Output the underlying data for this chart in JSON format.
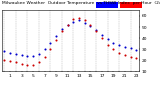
{
  "background_color": "#ffffff",
  "grid_color": "#aaaaaa",
  "hours": [
    0,
    1,
    2,
    3,
    4,
    5,
    6,
    7,
    8,
    9,
    10,
    11,
    12,
    13,
    14,
    15,
    16,
    17,
    18,
    19,
    20,
    21,
    22,
    23
  ],
  "temp_blue": [
    28,
    27,
    26,
    25,
    24,
    24,
    26,
    30,
    36,
    42,
    48,
    52,
    55,
    56,
    54,
    51,
    47,
    43,
    39,
    36,
    34,
    32,
    31,
    29
  ],
  "thsw_red": [
    20,
    19,
    18,
    17,
    16,
    16,
    18,
    23,
    30,
    38,
    46,
    52,
    57,
    58,
    56,
    52,
    46,
    40,
    34,
    30,
    27,
    25,
    23,
    22
  ],
  "temp_color": "#0000cc",
  "thsw_color": "#cc0000",
  "ylim_min": 10,
  "ylim_max": 65,
  "legend_color_temp": "#0000ff",
  "legend_color_thsw": "#ff0000",
  "marker_size": 1.5,
  "tick_fontsize": 3.2,
  "title_fontsize": 3.2
}
